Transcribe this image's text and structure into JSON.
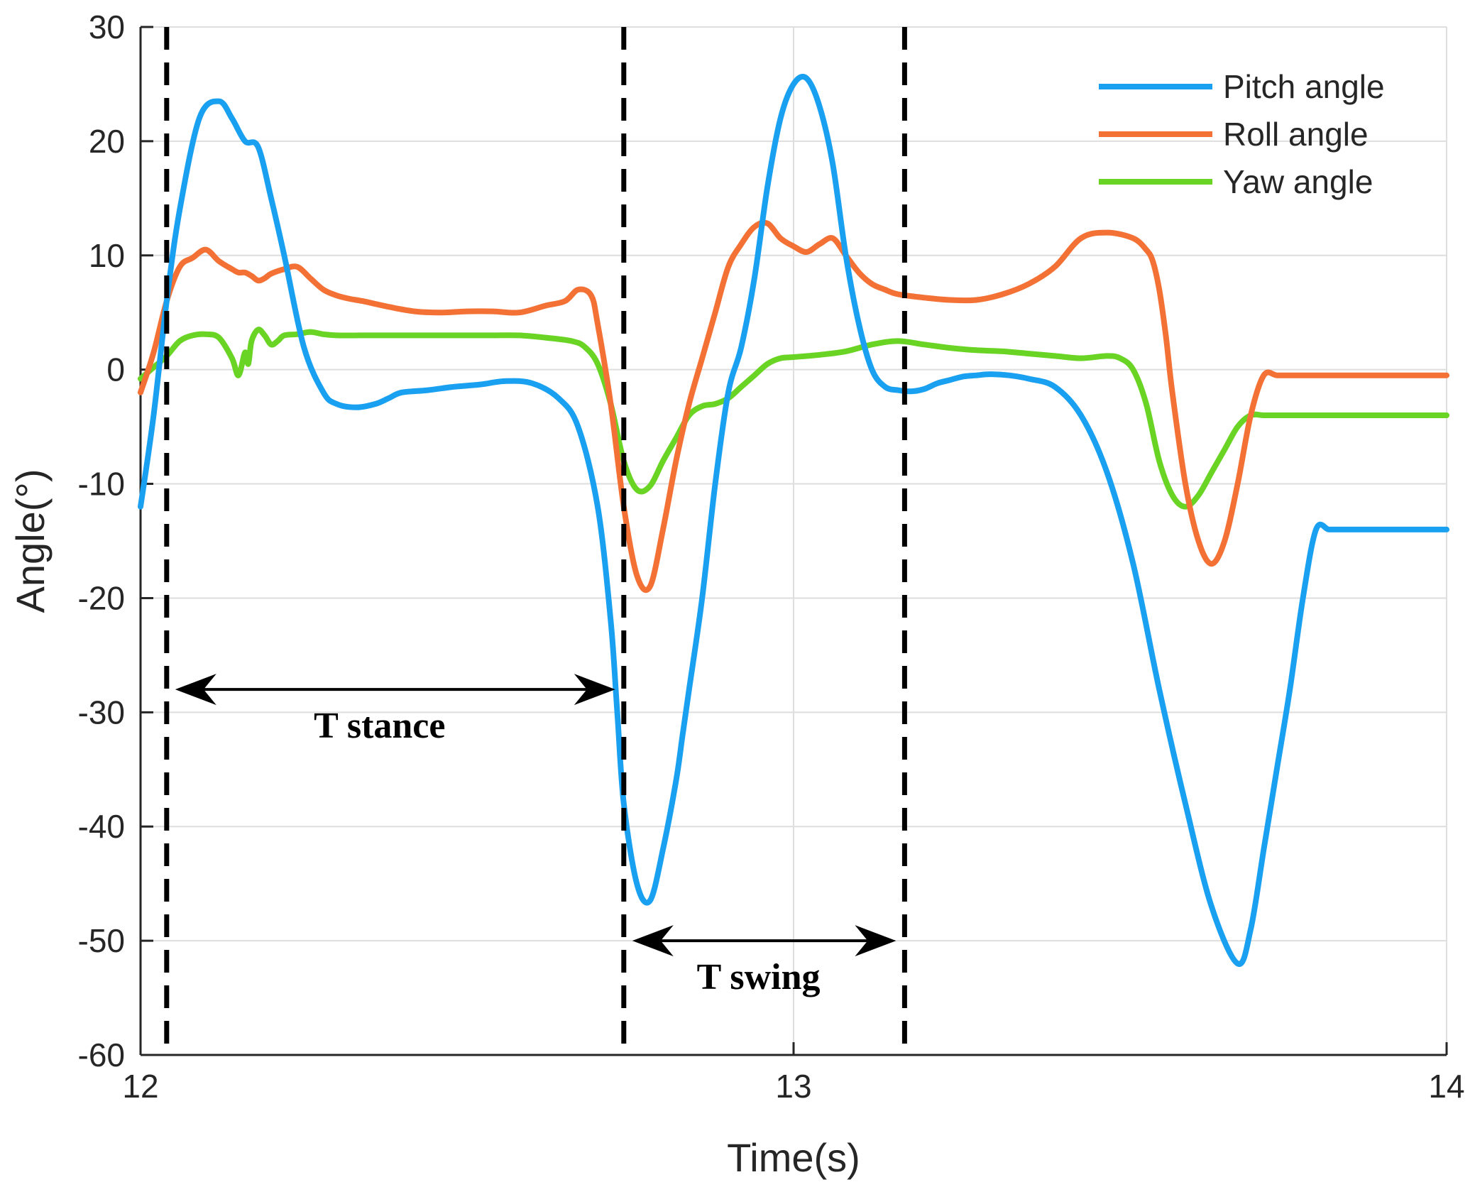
{
  "chart_data": {
    "type": "line",
    "title": "",
    "xlabel": "Time(s)",
    "ylabel": "Angle(°)",
    "xlim": [
      12,
      14
    ],
    "ylim": [
      -60,
      30
    ],
    "grid": true,
    "legend_position": "top-right",
    "x_ticks": [
      12,
      13,
      14
    ],
    "x_tick_labels": [
      "12",
      "13",
      "14"
    ],
    "y_ticks": [
      -60,
      -50,
      -40,
      -30,
      -20,
      -10,
      0,
      10,
      20,
      30
    ],
    "y_tick_labels": [
      "-60",
      "-50",
      "-40",
      "-30",
      "-20",
      "-10",
      "0",
      "10",
      "20",
      "30"
    ],
    "series": [
      {
        "name": "Pitch angle",
        "color": "#1aa0f0",
        "x": [
          12.0,
          12.02,
          12.04,
          12.06,
          12.09,
          12.12,
          12.14,
          12.16,
          12.18,
          12.2,
          12.22,
          12.25,
          12.28,
          12.3,
          12.33,
          12.36,
          12.38,
          12.4,
          12.44,
          12.48,
          12.52,
          12.56,
          12.6,
          12.64,
          12.67,
          12.7,
          12.72,
          12.73,
          12.74,
          12.76,
          12.78,
          12.8,
          12.82,
          12.83,
          12.84,
          12.86,
          12.88,
          12.9,
          12.92,
          12.94,
          12.96,
          12.98,
          13.0,
          13.02,
          13.04,
          13.06,
          13.08,
          13.1,
          13.12,
          13.14,
          13.16,
          13.18,
          13.2,
          13.22,
          13.24,
          13.26,
          13.28,
          13.3,
          13.33,
          13.36,
          13.4,
          13.44,
          13.48,
          13.52,
          13.56,
          13.6,
          13.64,
          13.68,
          13.7,
          13.72,
          13.74,
          13.76,
          13.78,
          13.8,
          13.82,
          13.84,
          13.86,
          13.88,
          13.9,
          13.92,
          13.94,
          13.96,
          13.98,
          14.0
        ],
        "y": [
          -12,
          -4,
          6,
          14,
          22,
          23.5,
          22,
          20,
          19.5,
          15,
          10,
          2,
          -2,
          -3,
          -3.3,
          -3,
          -2.5,
          -2,
          -1.8,
          -1.5,
          -1.3,
          -1.0,
          -1.2,
          -2.5,
          -5,
          -12,
          -22,
          -30,
          -38,
          -45,
          -46.5,
          -42,
          -36,
          -32,
          -28,
          -20,
          -10,
          -2,
          2,
          8,
          16,
          22,
          25,
          25.5,
          23,
          18,
          10,
          4,
          0,
          -1.5,
          -1.8,
          -1.9,
          -1.7,
          -1.2,
          -0.9,
          -0.6,
          -0.5,
          -0.4,
          -0.5,
          -0.8,
          -1.5,
          -4,
          -9,
          -17,
          -28,
          -38,
          -47,
          -52,
          -49,
          -42,
          -35,
          -28,
          -20,
          -14,
          -14,
          -14,
          -14,
          -14,
          -14,
          -14,
          -14,
          -14,
          -14,
          -14
        ],
        "x_clip": 14.0
      },
      {
        "name": "Roll angle",
        "color": "#f47135",
        "x": [
          12.0,
          12.02,
          12.04,
          12.06,
          12.08,
          12.1,
          12.12,
          12.14,
          12.15,
          12.16,
          12.17,
          12.18,
          12.19,
          12.2,
          12.22,
          12.24,
          12.26,
          12.28,
          12.3,
          12.32,
          12.34,
          12.38,
          12.42,
          12.46,
          12.5,
          12.54,
          12.58,
          12.62,
          12.65,
          12.67,
          12.69,
          12.7,
          12.72,
          12.74,
          12.76,
          12.78,
          12.8,
          12.82,
          12.84,
          12.86,
          12.88,
          12.9,
          12.92,
          12.94,
          12.96,
          12.98,
          13.0,
          13.02,
          13.04,
          13.06,
          13.08,
          13.1,
          13.12,
          13.14,
          13.16,
          13.2,
          13.24,
          13.28,
          13.32,
          13.36,
          13.4,
          13.44,
          13.48,
          13.52,
          13.54,
          13.55,
          13.56,
          13.57,
          13.58,
          13.6,
          13.62,
          13.64,
          13.66,
          13.68,
          13.7,
          13.72,
          13.74,
          13.76,
          13.78,
          13.8,
          13.82,
          13.84,
          13.86,
          13.88,
          13.9,
          13.92,
          13.94,
          13.96,
          13.98,
          14.0
        ],
        "y": [
          -2,
          1.5,
          6,
          9,
          9.8,
          10.5,
          9.5,
          8.8,
          8.5,
          8.5,
          8.2,
          7.8,
          8.0,
          8.4,
          8.8,
          9.0,
          8.0,
          7.0,
          6.5,
          6.2,
          6.0,
          5.5,
          5.1,
          5.0,
          5.1,
          5.1,
          5.0,
          5.6,
          6.0,
          7.0,
          6.5,
          4.0,
          -3.0,
          -12,
          -18,
          -19,
          -14,
          -8,
          -3,
          1,
          5,
          9,
          11,
          12.5,
          12.8,
          11.5,
          10.8,
          10.3,
          11.0,
          11.5,
          10.0,
          8.5,
          7.5,
          7.0,
          6.6,
          6.3,
          6.1,
          6.1,
          6.6,
          7.5,
          9.0,
          11.5,
          12.0,
          11.5,
          10.5,
          9.5,
          7.0,
          3.0,
          -2.0,
          -10.0,
          -15.0,
          -17.0,
          -15.0,
          -10.0,
          -4.0,
          -0.5,
          -0.5,
          -0.5,
          -0.5,
          -0.5,
          -0.5,
          -0.5,
          -0.5,
          -0.5,
          -0.5,
          -0.5,
          -0.5,
          -0.5,
          -0.5,
          -0.5
        ],
        "x_clip": 14.0
      },
      {
        "name": "Yaw angle",
        "color": "#6ad424",
        "x": [
          12.0,
          12.02,
          12.04,
          12.06,
          12.08,
          12.1,
          12.12,
          12.14,
          12.15,
          12.16,
          12.165,
          12.17,
          12.18,
          12.19,
          12.2,
          12.21,
          12.22,
          12.24,
          12.26,
          12.28,
          12.3,
          12.34,
          12.38,
          12.42,
          12.46,
          12.5,
          12.54,
          12.58,
          12.62,
          12.66,
          12.68,
          12.7,
          12.72,
          12.74,
          12.76,
          12.78,
          12.8,
          12.82,
          12.84,
          12.86,
          12.88,
          12.9,
          12.92,
          12.94,
          12.96,
          12.98,
          13.0,
          13.04,
          13.08,
          13.12,
          13.16,
          13.2,
          13.24,
          13.28,
          13.32,
          13.36,
          13.4,
          13.44,
          13.48,
          13.5,
          13.52,
          13.54,
          13.56,
          13.58,
          13.6,
          13.62,
          13.64,
          13.66,
          13.68,
          13.7,
          13.72,
          13.74,
          13.76,
          13.78,
          13.8,
          13.82,
          13.84,
          13.86,
          13.88,
          13.9,
          13.92,
          13.94,
          13.96,
          13.98,
          14.0
        ],
        "y": [
          -0.8,
          0.2,
          1.2,
          2.5,
          3.0,
          3.1,
          2.8,
          1.0,
          -0.5,
          1.5,
          0.5,
          2.5,
          3.5,
          3.0,
          2.2,
          2.5,
          3.0,
          3.1,
          3.3,
          3.1,
          3.0,
          3.0,
          3.0,
          3.0,
          3.0,
          3.0,
          3.0,
          3.0,
          2.8,
          2.5,
          2.0,
          0.5,
          -3.0,
          -8.0,
          -10.5,
          -10.2,
          -8.0,
          -6.0,
          -4.0,
          -3.2,
          -3.0,
          -2.5,
          -1.5,
          -0.5,
          0.5,
          1.0,
          1.1,
          1.3,
          1.6,
          2.2,
          2.5,
          2.2,
          1.9,
          1.7,
          1.6,
          1.4,
          1.2,
          1.0,
          1.2,
          1.0,
          0.0,
          -3.0,
          -8.0,
          -11.0,
          -12.0,
          -11.0,
          -9.0,
          -7.0,
          -5.0,
          -4.0,
          -4.0,
          -4.0,
          -4.0,
          -4.0,
          -4.0,
          -4.0,
          -4.0,
          -4.0,
          -4.0,
          -4.0,
          -4.0,
          -4.0,
          -4.0,
          -4.0,
          -4.0
        ],
        "x_clip": 14.0
      }
    ],
    "vertical_dashed_lines_x": [
      12.04,
      12.74,
      13.17
    ],
    "annotations": [
      {
        "text": "T stance",
        "from_x": 12.04,
        "to_x": 12.74,
        "y": -28
      },
      {
        "text": "T swing",
        "from_x": 12.74,
        "to_x": 13.17,
        "y": -50
      }
    ]
  }
}
